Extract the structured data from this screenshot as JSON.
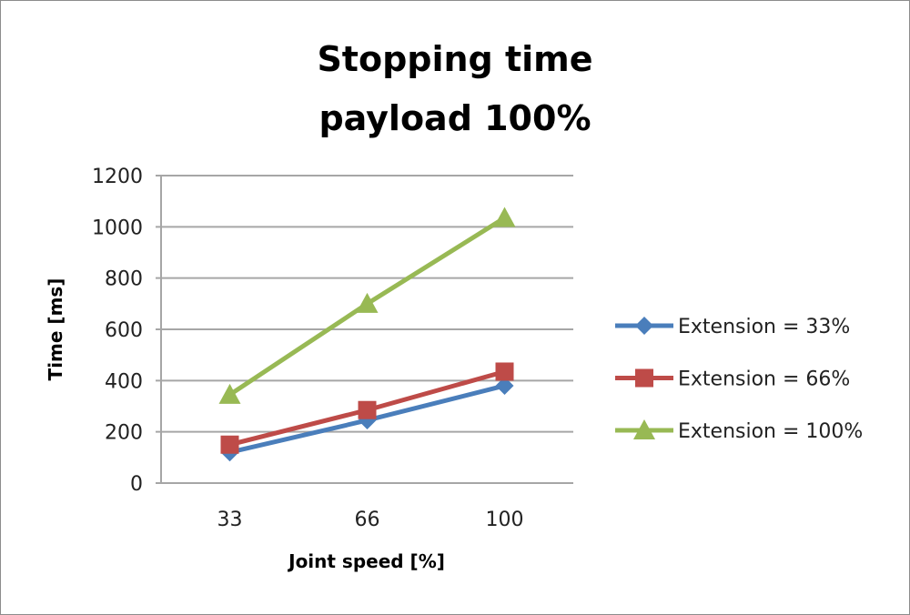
{
  "chart_data": {
    "type": "line",
    "title": "Stopping time",
    "subtitle": "payload 100%",
    "xlabel": "Joint speed [%]",
    "ylabel": "Time [ms]",
    "categories": [
      "33",
      "66",
      "100"
    ],
    "ylim": [
      0,
      1200
    ],
    "yticks": [
      "0",
      "200",
      "400",
      "600",
      "800",
      "1000",
      "1200"
    ],
    "grid": true,
    "legend": "right",
    "series": [
      {
        "name": "Extension = 33%",
        "values": [
          120,
          245,
          380
        ],
        "color": "#4a7ebb",
        "marker": "diamond"
      },
      {
        "name": "Extension = 66%",
        "values": [
          150,
          285,
          435
        ],
        "color": "#be4b48",
        "marker": "square"
      },
      {
        "name": "Extension = 100%",
        "values": [
          345,
          700,
          1035
        ],
        "color": "#98b954",
        "marker": "triangle"
      }
    ]
  }
}
